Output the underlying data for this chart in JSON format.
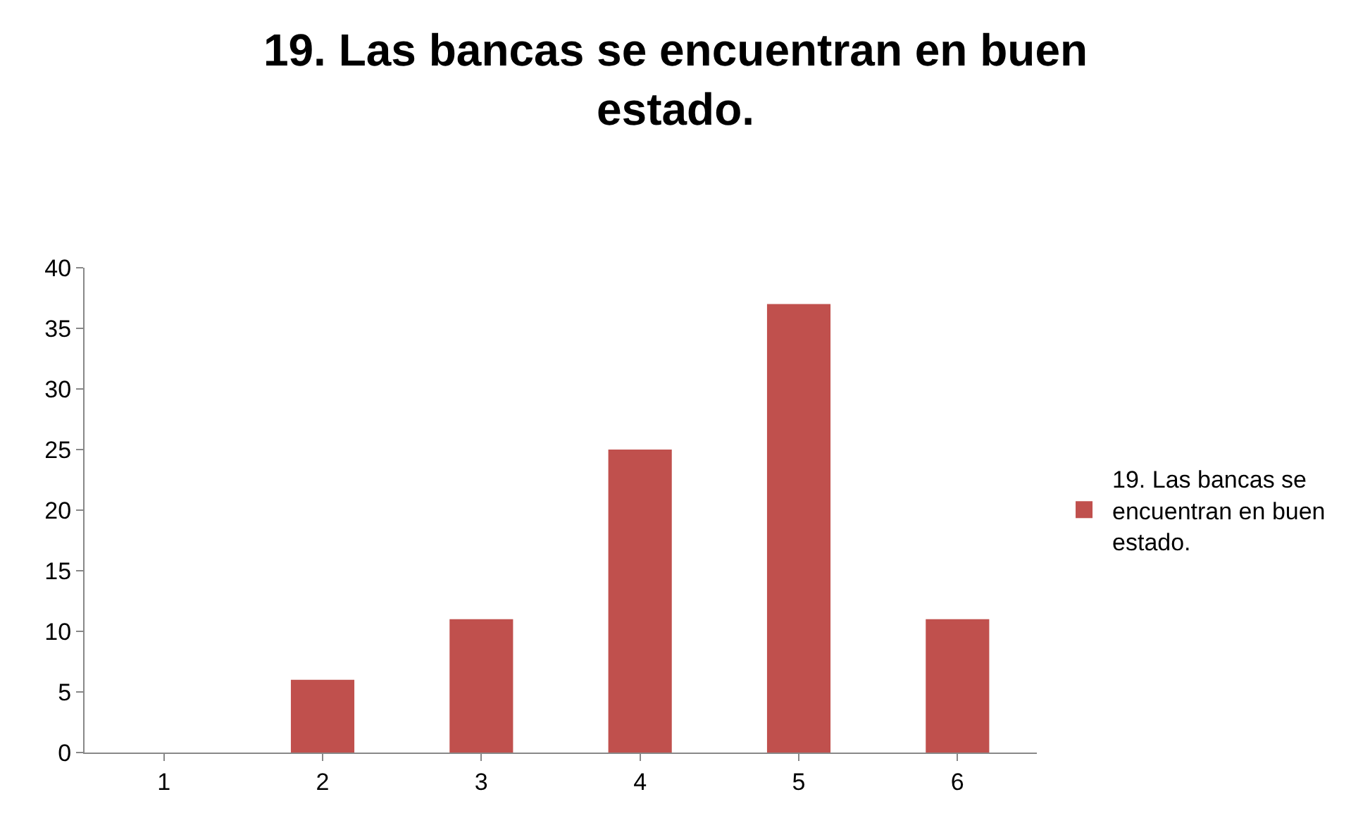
{
  "chart_data": {
    "type": "bar",
    "title": "19. Las bancas se encuentran en buen estado.",
    "categories": [
      "1",
      "2",
      "3",
      "4",
      "5",
      "6"
    ],
    "series": [
      {
        "name": "19. Las bancas se encuentran en buen estado.",
        "color": "#c0504d",
        "values": [
          0,
          6,
          11,
          25,
          37,
          11
        ]
      }
    ],
    "ylim": [
      0,
      40
    ],
    "yticks": [
      0,
      5,
      10,
      15,
      20,
      25,
      30,
      35,
      40
    ],
    "grid": false,
    "legend": "right"
  }
}
